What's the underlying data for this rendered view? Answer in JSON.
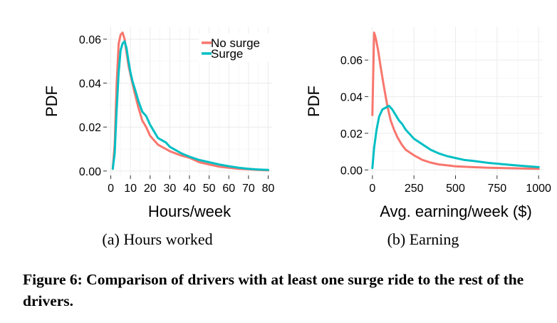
{
  "caption": "Figure 6: Comparison of drivers with at least one surge ride to the rest of the drivers.",
  "colors": {
    "no_surge": "#F8766D",
    "surge": "#00BFC4",
    "grid": "#EBEBEB"
  },
  "chart_data": [
    {
      "type": "line",
      "subcaption": "(a) Hours worked",
      "xlabel": "Hours/week",
      "ylabel": "PDF",
      "xlim": [
        -2,
        82
      ],
      "ylim": [
        -0.002,
        0.0655
      ],
      "xticks": [
        0,
        10,
        20,
        30,
        40,
        50,
        60,
        70,
        80
      ],
      "yticks": [
        0.0,
        0.02,
        0.04,
        0.06
      ],
      "ytick_labels": [
        "0.00",
        "0.02",
        "0.04",
        "0.06"
      ],
      "grid": true,
      "legend": {
        "position": "top-right",
        "entries": [
          "No surge",
          "Surge"
        ]
      },
      "series": [
        {
          "name": "No surge",
          "x": [
            1,
            2,
            3,
            4,
            5,
            6,
            7,
            8,
            9,
            10,
            11,
            12,
            14,
            16,
            18,
            20,
            22,
            24,
            26,
            28,
            30,
            33,
            36,
            40,
            45,
            50,
            55,
            60,
            65,
            70,
            75,
            80
          ],
          "y": [
            0.001,
            0.012,
            0.04,
            0.058,
            0.062,
            0.063,
            0.06,
            0.054,
            0.048,
            0.044,
            0.04,
            0.036,
            0.029,
            0.023,
            0.02,
            0.016,
            0.014,
            0.012,
            0.011,
            0.01,
            0.009,
            0.008,
            0.007,
            0.006,
            0.004,
            0.003,
            0.002,
            0.0015,
            0.001,
            0.0008,
            0.0005,
            0.0003
          ]
        },
        {
          "name": "Surge",
          "x": [
            1,
            2,
            3,
            4,
            5,
            6,
            7,
            8,
            9,
            10,
            11,
            12,
            14,
            16,
            18,
            20,
            22,
            24,
            26,
            28,
            30,
            33,
            36,
            40,
            45,
            50,
            55,
            60,
            65,
            70,
            75,
            80
          ],
          "y": [
            0.001,
            0.008,
            0.028,
            0.045,
            0.055,
            0.058,
            0.059,
            0.056,
            0.05,
            0.045,
            0.041,
            0.038,
            0.032,
            0.027,
            0.025,
            0.021,
            0.018,
            0.015,
            0.014,
            0.013,
            0.011,
            0.0095,
            0.008,
            0.0065,
            0.005,
            0.004,
            0.003,
            0.0022,
            0.0015,
            0.001,
            0.0007,
            0.0005
          ]
        }
      ]
    },
    {
      "type": "line",
      "subcaption": "(b) Earning",
      "xlabel": "Avg. earning/week ($)",
      "ylabel": "PDF",
      "xlim": [
        -25,
        1025
      ],
      "ylim": [
        -0.003,
        0.078
      ],
      "xticks": [
        0,
        250,
        500,
        750,
        1000
      ],
      "yticks": [
        0.0,
        0.02,
        0.04,
        0.06
      ],
      "ytick_labels": [
        "0.00",
        "0.02",
        "0.04",
        "0.06"
      ],
      "grid": true,
      "series": [
        {
          "name": "No surge",
          "x": [
            0,
            10,
            20,
            35,
            50,
            70,
            90,
            110,
            130,
            150,
            175,
            200,
            250,
            300,
            350,
            400,
            450,
            500,
            600,
            700,
            800,
            900,
            1000
          ],
          "y": [
            0.03,
            0.075,
            0.072,
            0.065,
            0.056,
            0.045,
            0.035,
            0.027,
            0.022,
            0.018,
            0.014,
            0.011,
            0.008,
            0.0055,
            0.004,
            0.003,
            0.0025,
            0.002,
            0.0015,
            0.0012,
            0.001,
            0.0008,
            0.0006
          ]
        },
        {
          "name": "Surge",
          "x": [
            0,
            10,
            25,
            40,
            60,
            80,
            100,
            120,
            140,
            160,
            180,
            200,
            250,
            300,
            350,
            400,
            450,
            500,
            550,
            600,
            700,
            800,
            900,
            1000
          ],
          "y": [
            0.001,
            0.012,
            0.022,
            0.029,
            0.033,
            0.034,
            0.035,
            0.033,
            0.03,
            0.027,
            0.025,
            0.022,
            0.017,
            0.014,
            0.011,
            0.009,
            0.0075,
            0.0065,
            0.0055,
            0.005,
            0.0038,
            0.003,
            0.0022,
            0.0015
          ]
        }
      ]
    }
  ]
}
